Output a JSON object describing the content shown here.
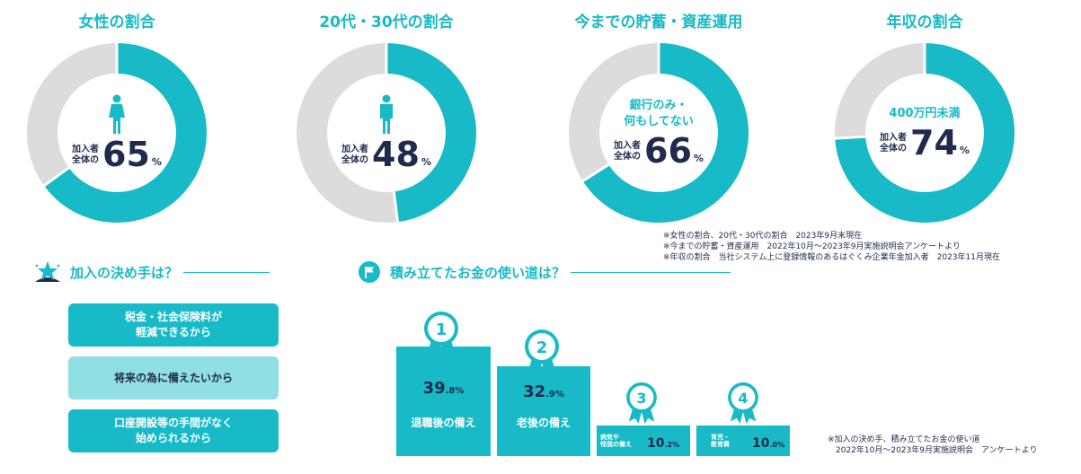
{
  "chart_data": [
    {
      "type": "pie",
      "title": "女性の割合",
      "sub": "",
      "label": "加入者\n全体の",
      "value": 65,
      "unit": "%",
      "colors": {
        "filled": "#17bac6",
        "rest": "#dcdcdc"
      },
      "icon": "female-icon"
    },
    {
      "type": "pie",
      "title": "20代・30代の割合",
      "sub": "",
      "label": "加入者\n全体の",
      "value": 48,
      "unit": "%",
      "colors": {
        "filled": "#17bac6",
        "rest": "#dcdcdc"
      },
      "icon": "male-icon"
    },
    {
      "type": "pie",
      "title": "今までの貯蓄・資産運用",
      "sub": "銀行のみ・\n何もしてない",
      "label": "加入者\n全体の",
      "value": 66,
      "unit": "%",
      "colors": {
        "filled": "#17bac6",
        "rest": "#dcdcdc"
      }
    },
    {
      "type": "pie",
      "title": "年収の割合",
      "sub": "400万円未満",
      "label": "加入者\n全体の",
      "value": 74,
      "unit": "%",
      "colors": {
        "filled": "#17bac6",
        "rest": "#dcdcdc"
      }
    },
    {
      "type": "bar",
      "title": "積み立てたお金の使い道は？",
      "items": [
        {
          "rank": "1",
          "label": "退職後の備え",
          "value": "39",
          "dec": ".8",
          "unit": "%",
          "pct": 39.8
        },
        {
          "rank": "2",
          "label": "老後の備え",
          "value": "32",
          "dec": ".9",
          "unit": "%",
          "pct": 32.9
        },
        {
          "rank": "3",
          "label": "病気や\n怪我の備え",
          "value": "10",
          "dec": ".2",
          "unit": "%",
          "pct": 10.2
        },
        {
          "rank": "4",
          "label": "育児・\n教育費",
          "value": "10",
          "dec": ".0",
          "unit": "%",
          "pct": 10.0
        }
      ]
    }
  ],
  "notes": [
    "※女性の割合、20代・30代の割合　2023年9月末現在",
    "※今までの貯蓄・資産運用　2022年10月～2023年9月実施説明会アンケートより",
    "※年収の割合　当社システム上に登録情報のあるはぐくみ企業年金加入者　2023年11月現在"
  ],
  "reasons_section": {
    "title": "加入の決め手は？",
    "icon": "star-badge-icon",
    "items": [
      "税金・社会保険料が\n軽減できるから",
      "将来の為に備えたいから",
      "口座開設等の手間がなく\n始められるから"
    ]
  },
  "usage_section": {
    "icon": "flag-icon"
  },
  "footnote": [
    "※加入の決め手、積み立てたお金の使い道",
    "　2022年10月～2023年9月実施説明会　アンケートより"
  ]
}
